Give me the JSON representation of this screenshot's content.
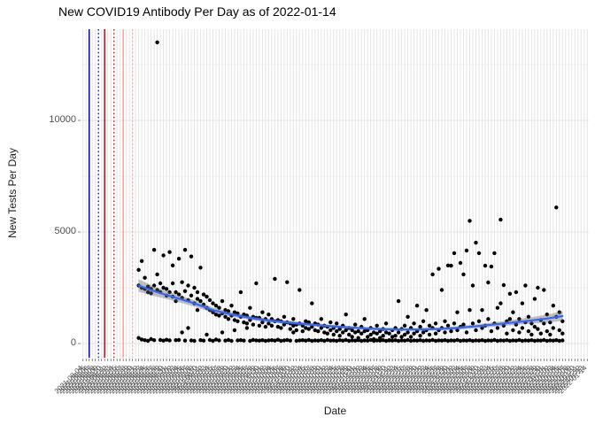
{
  "chart_data": {
    "type": "scatter",
    "title": "New COVID19 Antibody Per Day as of 2022-01-14",
    "xlabel": "Date",
    "ylabel": "New Tests Per Day",
    "ylim": [
      -640,
      14100
    ],
    "y_ticks": [
      0,
      5000,
      10000
    ],
    "y_tick_labels": [
      "0",
      "5000",
      "10000"
    ],
    "y_minor_gridlines": [
      2500,
      7500,
      12500
    ],
    "grid": true,
    "legend": "none",
    "point_color": "#000000",
    "smooth_color": "#3366FF",
    "ribbon_color": "rgba(102,102,102,0.40)",
    "gridline_color": "#e4e4e4",
    "minor_gridline_color": "#f1f1f1",
    "tick_text_color": "#4d4d4d",
    "categories": [
      "2021-08-04",
      "2021-08-05",
      "2021-08-06",
      "2021-08-07",
      "2021-08-08",
      "2021-08-09",
      "2021-08-10",
      "2021-08-11",
      "2021-08-12",
      "2021-08-13",
      "2021-08-14",
      "2021-08-15",
      "2021-08-16",
      "2021-08-17",
      "2021-08-18",
      "2021-08-19",
      "2021-08-20",
      "2021-08-21",
      "2021-08-22",
      "2021-08-23",
      "2021-08-24",
      "2021-08-25",
      "2021-08-26",
      "2021-08-27",
      "2021-08-28",
      "2021-08-29",
      "2021-08-30",
      "2021-08-31",
      "2021-09-01",
      "2021-09-02",
      "2021-09-03",
      "2021-09-04",
      "2021-09-05",
      "2021-09-06",
      "2021-09-07",
      "2021-09-08",
      "2021-09-09",
      "2021-09-10",
      "2021-09-11",
      "2021-09-12",
      "2021-09-13",
      "2021-09-14",
      "2021-09-15",
      "2021-09-16",
      "2021-09-17",
      "2021-09-18",
      "2021-09-19",
      "2021-09-20",
      "2021-09-21",
      "2021-09-22",
      "2021-09-23",
      "2021-09-24",
      "2021-09-25",
      "2021-09-26",
      "2021-09-27",
      "2021-09-28",
      "2021-09-29",
      "2021-09-30",
      "2021-10-01",
      "2021-10-02",
      "2021-10-03",
      "2021-10-04",
      "2021-10-05",
      "2021-10-06",
      "2021-10-07",
      "2021-10-08",
      "2021-10-09",
      "2021-10-10",
      "2021-10-11",
      "2021-10-12",
      "2021-10-13",
      "2021-10-14",
      "2021-10-15",
      "2021-10-16",
      "2021-10-17",
      "2021-10-18",
      "2021-10-19",
      "2021-10-20",
      "2021-10-21",
      "2021-10-22",
      "2021-10-23",
      "2021-10-24",
      "2021-10-25",
      "2021-10-26",
      "2021-10-27",
      "2021-10-28",
      "2021-10-29",
      "2021-10-30",
      "2021-10-31",
      "2021-11-01",
      "2021-11-02",
      "2021-11-03",
      "2021-11-04",
      "2021-11-05",
      "2021-11-06",
      "2021-11-07",
      "2021-11-08",
      "2021-11-09",
      "2021-11-10",
      "2021-11-11",
      "2021-11-12",
      "2021-11-13",
      "2021-11-14",
      "2021-11-15",
      "2021-11-16",
      "2021-11-17",
      "2021-11-18",
      "2021-11-19",
      "2021-11-20",
      "2021-11-21",
      "2021-11-22",
      "2021-11-23",
      "2021-11-24",
      "2021-11-25",
      "2021-11-26",
      "2021-11-27",
      "2021-11-28",
      "2021-11-29",
      "2021-11-30",
      "2021-12-01",
      "2021-12-02",
      "2021-12-03",
      "2021-12-04",
      "2021-12-05",
      "2021-12-06",
      "2021-12-07",
      "2021-12-08",
      "2021-12-09",
      "2021-12-10",
      "2021-12-11",
      "2021-12-12",
      "2021-12-13",
      "2021-12-14",
      "2021-12-15",
      "2021-12-16",
      "2021-12-17",
      "2021-12-18",
      "2021-12-19",
      "2021-12-20",
      "2021-12-21",
      "2021-12-22",
      "2021-12-23",
      "2021-12-24",
      "2021-12-25",
      "2021-12-26",
      "2021-12-27",
      "2021-12-28",
      "2021-12-29",
      "2021-12-30",
      "2021-12-31",
      "2022-01-01",
      "2022-01-02",
      "2022-01-03",
      "2022-01-04",
      "2022-01-05",
      "2022-01-06",
      "2022-01-07",
      "2022-01-08",
      "2022-01-09",
      "2022-01-10",
      "2022-01-11",
      "2022-01-12",
      "2022-01-13",
      "2022-01-14"
    ],
    "vlines": [
      {
        "index": 2,
        "date": "2021-08-06",
        "color": "#0000CC",
        "style": "solid"
      },
      {
        "index": 5,
        "date": "2021-08-09",
        "color": "#0000CC",
        "style": "dotted"
      },
      {
        "index": 7,
        "date": "2021-08-11",
        "color": "#DD0000",
        "style": "solid"
      },
      {
        "index": 10,
        "date": "2021-08-14",
        "color": "#DD0000",
        "style": "dotted"
      },
      {
        "index": 13,
        "date": "2021-08-17",
        "color": "#FFA0A0",
        "style": "solid"
      },
      {
        "index": 16,
        "date": "2021-08-20",
        "color": "#FFA0A0",
        "style": "dotted"
      }
    ],
    "points_by_day": [
      [
        18,
        3300,
        2600,
        250
      ],
      [
        19,
        3700,
        2500,
        180
      ],
      [
        20,
        2950,
        2450,
        150
      ],
      [
        21,
        2550,
        2300,
        120
      ],
      [
        22,
        2450,
        2250,
        200
      ],
      [
        23,
        4200,
        2600,
        150
      ],
      [
        24,
        13500,
        3100,
        2400
      ],
      [
        25,
        2700,
        2300,
        160
      ],
      [
        26,
        3950,
        2500,
        130
      ],
      [
        27,
        2450,
        2150,
        170
      ],
      [
        28,
        4100,
        2300,
        140
      ],
      [
        29,
        3500,
        2700,
        2100
      ],
      [
        30,
        2300,
        1900,
        150
      ],
      [
        31,
        3800,
        2200,
        160
      ],
      [
        32,
        2750,
        2050,
        500
      ],
      [
        33,
        4200,
        2350,
        130
      ],
      [
        34,
        2600,
        1950,
        700
      ],
      [
        35,
        3900,
        2150,
        140
      ],
      [
        36,
        2500,
        1800,
        120
      ],
      [
        37,
        2300,
        2000,
        1500
      ],
      [
        38,
        3400,
        1900,
        150
      ],
      [
        39,
        2200,
        1750,
        130
      ],
      [
        40,
        2100,
        1600,
        400
      ],
      [
        41,
        1950,
        1500,
        160
      ],
      [
        42,
        1800,
        1400,
        120
      ],
      [
        43,
        1700,
        1300,
        180
      ],
      [
        44,
        1600,
        1250,
        140
      ],
      [
        45,
        1900,
        1350,
        500
      ],
      [
        46,
        1500,
        1200,
        130
      ],
      [
        47,
        1450,
        1100,
        160
      ],
      [
        48,
        1700,
        1250,
        120
      ],
      [
        49,
        1400,
        1050,
        600
      ],
      [
        50,
        1350,
        1000,
        140
      ],
      [
        51,
        2300,
        1200,
        150
      ],
      [
        52,
        1300,
        950,
        130
      ],
      [
        53,
        1250,
        900,
        700
      ],
      [
        54,
        1600,
        1050,
        120
      ],
      [
        55,
        1200,
        850,
        160
      ],
      [
        56,
        2700,
        1150,
        140
      ],
      [
        57,
        1150,
        800,
        130
      ],
      [
        58,
        1400,
        950,
        150
      ],
      [
        59,
        1100,
        750,
        120
      ],
      [
        60,
        1300,
        900,
        140
      ],
      [
        61,
        1100,
        800,
        150
      ],
      [
        62,
        2900,
        1000,
        130
      ],
      [
        63,
        1050,
        750,
        170
      ],
      [
        64,
        1000,
        700,
        120
      ],
      [
        65,
        1200,
        850,
        140
      ],
      [
        66,
        2750,
        950,
        160
      ],
      [
        67,
        900,
        650,
        130
      ],
      [
        68,
        1100,
        800,
        500
      ],
      [
        69,
        850,
        600,
        120
      ],
      [
        70,
        2400,
        900,
        140
      ],
      [
        71,
        800,
        550,
        150
      ],
      [
        72,
        1000,
        700,
        130
      ],
      [
        73,
        950,
        650,
        160
      ],
      [
        74,
        1800,
        750,
        120
      ],
      [
        75,
        900,
        600,
        140
      ],
      [
        76,
        850,
        550,
        130
      ],
      [
        77,
        1100,
        700,
        150
      ],
      [
        78,
        800,
        500,
        120
      ],
      [
        79,
        750,
        450,
        160
      ],
      [
        80,
        950,
        600,
        130
      ],
      [
        81,
        700,
        400,
        140
      ],
      [
        82,
        900,
        550,
        120
      ],
      [
        83,
        650,
        350,
        150
      ],
      [
        84,
        800,
        500,
        130
      ],
      [
        85,
        1300,
        600,
        160
      ],
      [
        86,
        700,
        400,
        120
      ],
      [
        87,
        600,
        300,
        140
      ],
      [
        88,
        850,
        500,
        130
      ],
      [
        89,
        550,
        250,
        150
      ],
      [
        90,
        750,
        450,
        120
      ],
      [
        91,
        1100,
        550,
        140
      ],
      [
        92,
        600,
        300,
        130
      ],
      [
        93,
        700,
        400,
        160
      ],
      [
        94,
        500,
        200,
        120
      ],
      [
        95,
        800,
        450,
        140
      ],
      [
        96,
        550,
        250,
        130
      ],
      [
        97,
        650,
        350,
        150
      ],
      [
        98,
        900,
        500,
        120
      ],
      [
        99,
        450,
        150,
        140
      ],
      [
        100,
        600,
        300,
        130
      ],
      [
        101,
        700,
        350,
        150
      ],
      [
        102,
        1900,
        500,
        120
      ],
      [
        103,
        650,
        300,
        140
      ],
      [
        104,
        800,
        400,
        130
      ],
      [
        105,
        1200,
        500,
        160
      ],
      [
        106,
        700,
        300,
        120
      ],
      [
        107,
        900,
        450,
        140
      ],
      [
        108,
        1700,
        550,
        130
      ],
      [
        109,
        750,
        350,
        150
      ],
      [
        110,
        1000,
        500,
        120
      ],
      [
        111,
        1500,
        600,
        140
      ],
      [
        112,
        800,
        400,
        130
      ],
      [
        113,
        3100,
        700,
        160
      ],
      [
        114,
        900,
        450,
        120
      ],
      [
        115,
        3350,
        600,
        140
      ],
      [
        116,
        2400,
        700,
        130
      ],
      [
        117,
        1000,
        500,
        150
      ],
      [
        118,
        3500,
        800,
        120
      ],
      [
        119,
        3490,
        550,
        140
      ],
      [
        120,
        4050,
        900,
        130
      ],
      [
        121,
        1400,
        600,
        160
      ],
      [
        122,
        3610,
        750,
        120
      ],
      [
        123,
        3100,
        850,
        140
      ],
      [
        124,
        4170,
        500,
        130
      ],
      [
        125,
        5500,
        1500,
        150
      ],
      [
        126,
        2600,
        900,
        120
      ],
      [
        127,
        4520,
        600,
        140
      ],
      [
        128,
        4050,
        1000,
        130
      ],
      [
        129,
        1500,
        700,
        150
      ],
      [
        130,
        3490,
        800,
        120
      ],
      [
        131,
        2740,
        1100,
        140
      ],
      [
        132,
        3450,
        550,
        130
      ],
      [
        133,
        4050,
        900,
        160
      ],
      [
        134,
        1600,
        700,
        120
      ],
      [
        135,
        5550,
        1800,
        140
      ],
      [
        136,
        2620,
        800,
        130
      ],
      [
        137,
        1000,
        450,
        150
      ],
      [
        138,
        2230,
        1100,
        120
      ],
      [
        139,
        1400,
        600,
        140
      ],
      [
        140,
        2300,
        850,
        130
      ],
      [
        141,
        1100,
        500,
        160
      ],
      [
        142,
        1800,
        700,
        120
      ],
      [
        143,
        2600,
        950,
        140
      ],
      [
        144,
        1200,
        550,
        130
      ],
      [
        145,
        900,
        400,
        150
      ],
      [
        146,
        2000,
        750,
        120
      ],
      [
        147,
        2500,
        650,
        140
      ],
      [
        148,
        1050,
        450,
        130
      ],
      [
        149,
        2400,
        900,
        160
      ],
      [
        150,
        1300,
        550,
        120
      ],
      [
        151,
        950,
        400,
        140
      ],
      [
        152,
        1700,
        700,
        130
      ],
      [
        153,
        6100,
        1200,
        150
      ],
      [
        154,
        1400,
        600,
        120
      ],
      [
        155,
        1000,
        450,
        140
      ]
    ],
    "smooth": [
      [
        18,
        2600,
        280
      ],
      [
        24,
        2300,
        200
      ],
      [
        30,
        2050,
        160
      ],
      [
        36,
        1800,
        140
      ],
      [
        42,
        1500,
        120
      ],
      [
        48,
        1300,
        100
      ],
      [
        54,
        1150,
        90
      ],
      [
        60,
        1030,
        80
      ],
      [
        66,
        950,
        75
      ],
      [
        72,
        870,
        70
      ],
      [
        78,
        800,
        65
      ],
      [
        84,
        740,
        65
      ],
      [
        90,
        690,
        60
      ],
      [
        96,
        650,
        60
      ],
      [
        102,
        630,
        60
      ],
      [
        108,
        630,
        60
      ],
      [
        114,
        650,
        65
      ],
      [
        120,
        690,
        70
      ],
      [
        126,
        760,
        80
      ],
      [
        132,
        840,
        95
      ],
      [
        138,
        930,
        115
      ],
      [
        144,
        1020,
        140
      ],
      [
        150,
        1120,
        175
      ],
      [
        155,
        1230,
        220
      ]
    ]
  }
}
